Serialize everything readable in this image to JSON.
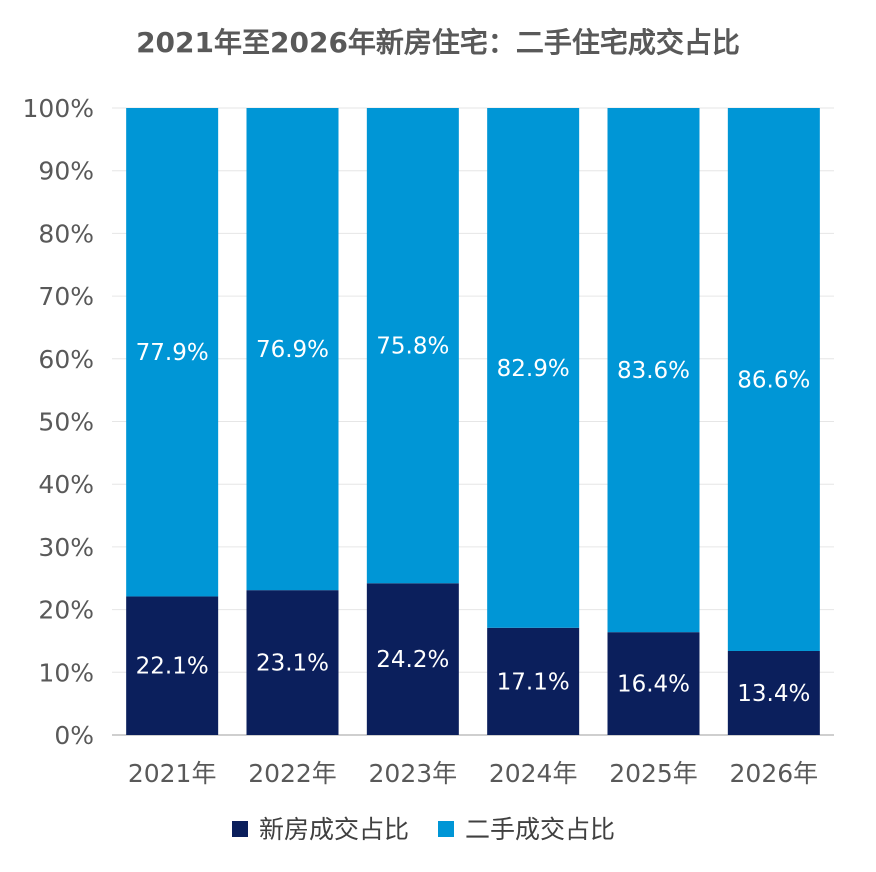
{
  "chart_data": {
    "type": "bar",
    "stacked": true,
    "title": "2021年至2026年新房住宅：二手住宅成交占比",
    "categories": [
      "2021年",
      "2022年",
      "2023年",
      "2024年",
      "2025年",
      "2026年"
    ],
    "series": [
      {
        "name": "新房成交占比",
        "color": "#0b1f5c",
        "values": [
          22.1,
          23.1,
          24.2,
          17.1,
          16.4,
          13.4
        ],
        "labels": [
          "22.1%",
          "23.1%",
          "24.2%",
          "17.1%",
          "16.4%",
          "13.4%"
        ]
      },
      {
        "name": "二手成交占比",
        "color": "#0096d6",
        "values": [
          77.9,
          76.9,
          75.8,
          82.9,
          83.6,
          86.6
        ],
        "labels": [
          "77.9%",
          "76.9%",
          "75.8%",
          "82.9%",
          "83.6%",
          "86.6%"
        ]
      }
    ],
    "yticks": [
      "0%",
      "10%",
      "20%",
      "30%",
      "40%",
      "50%",
      "60%",
      "70%",
      "80%",
      "90%",
      "100%"
    ],
    "ylim": [
      0,
      100
    ],
    "xlabel": "",
    "ylabel": "",
    "grid": true,
    "legend_position": "bottom"
  }
}
